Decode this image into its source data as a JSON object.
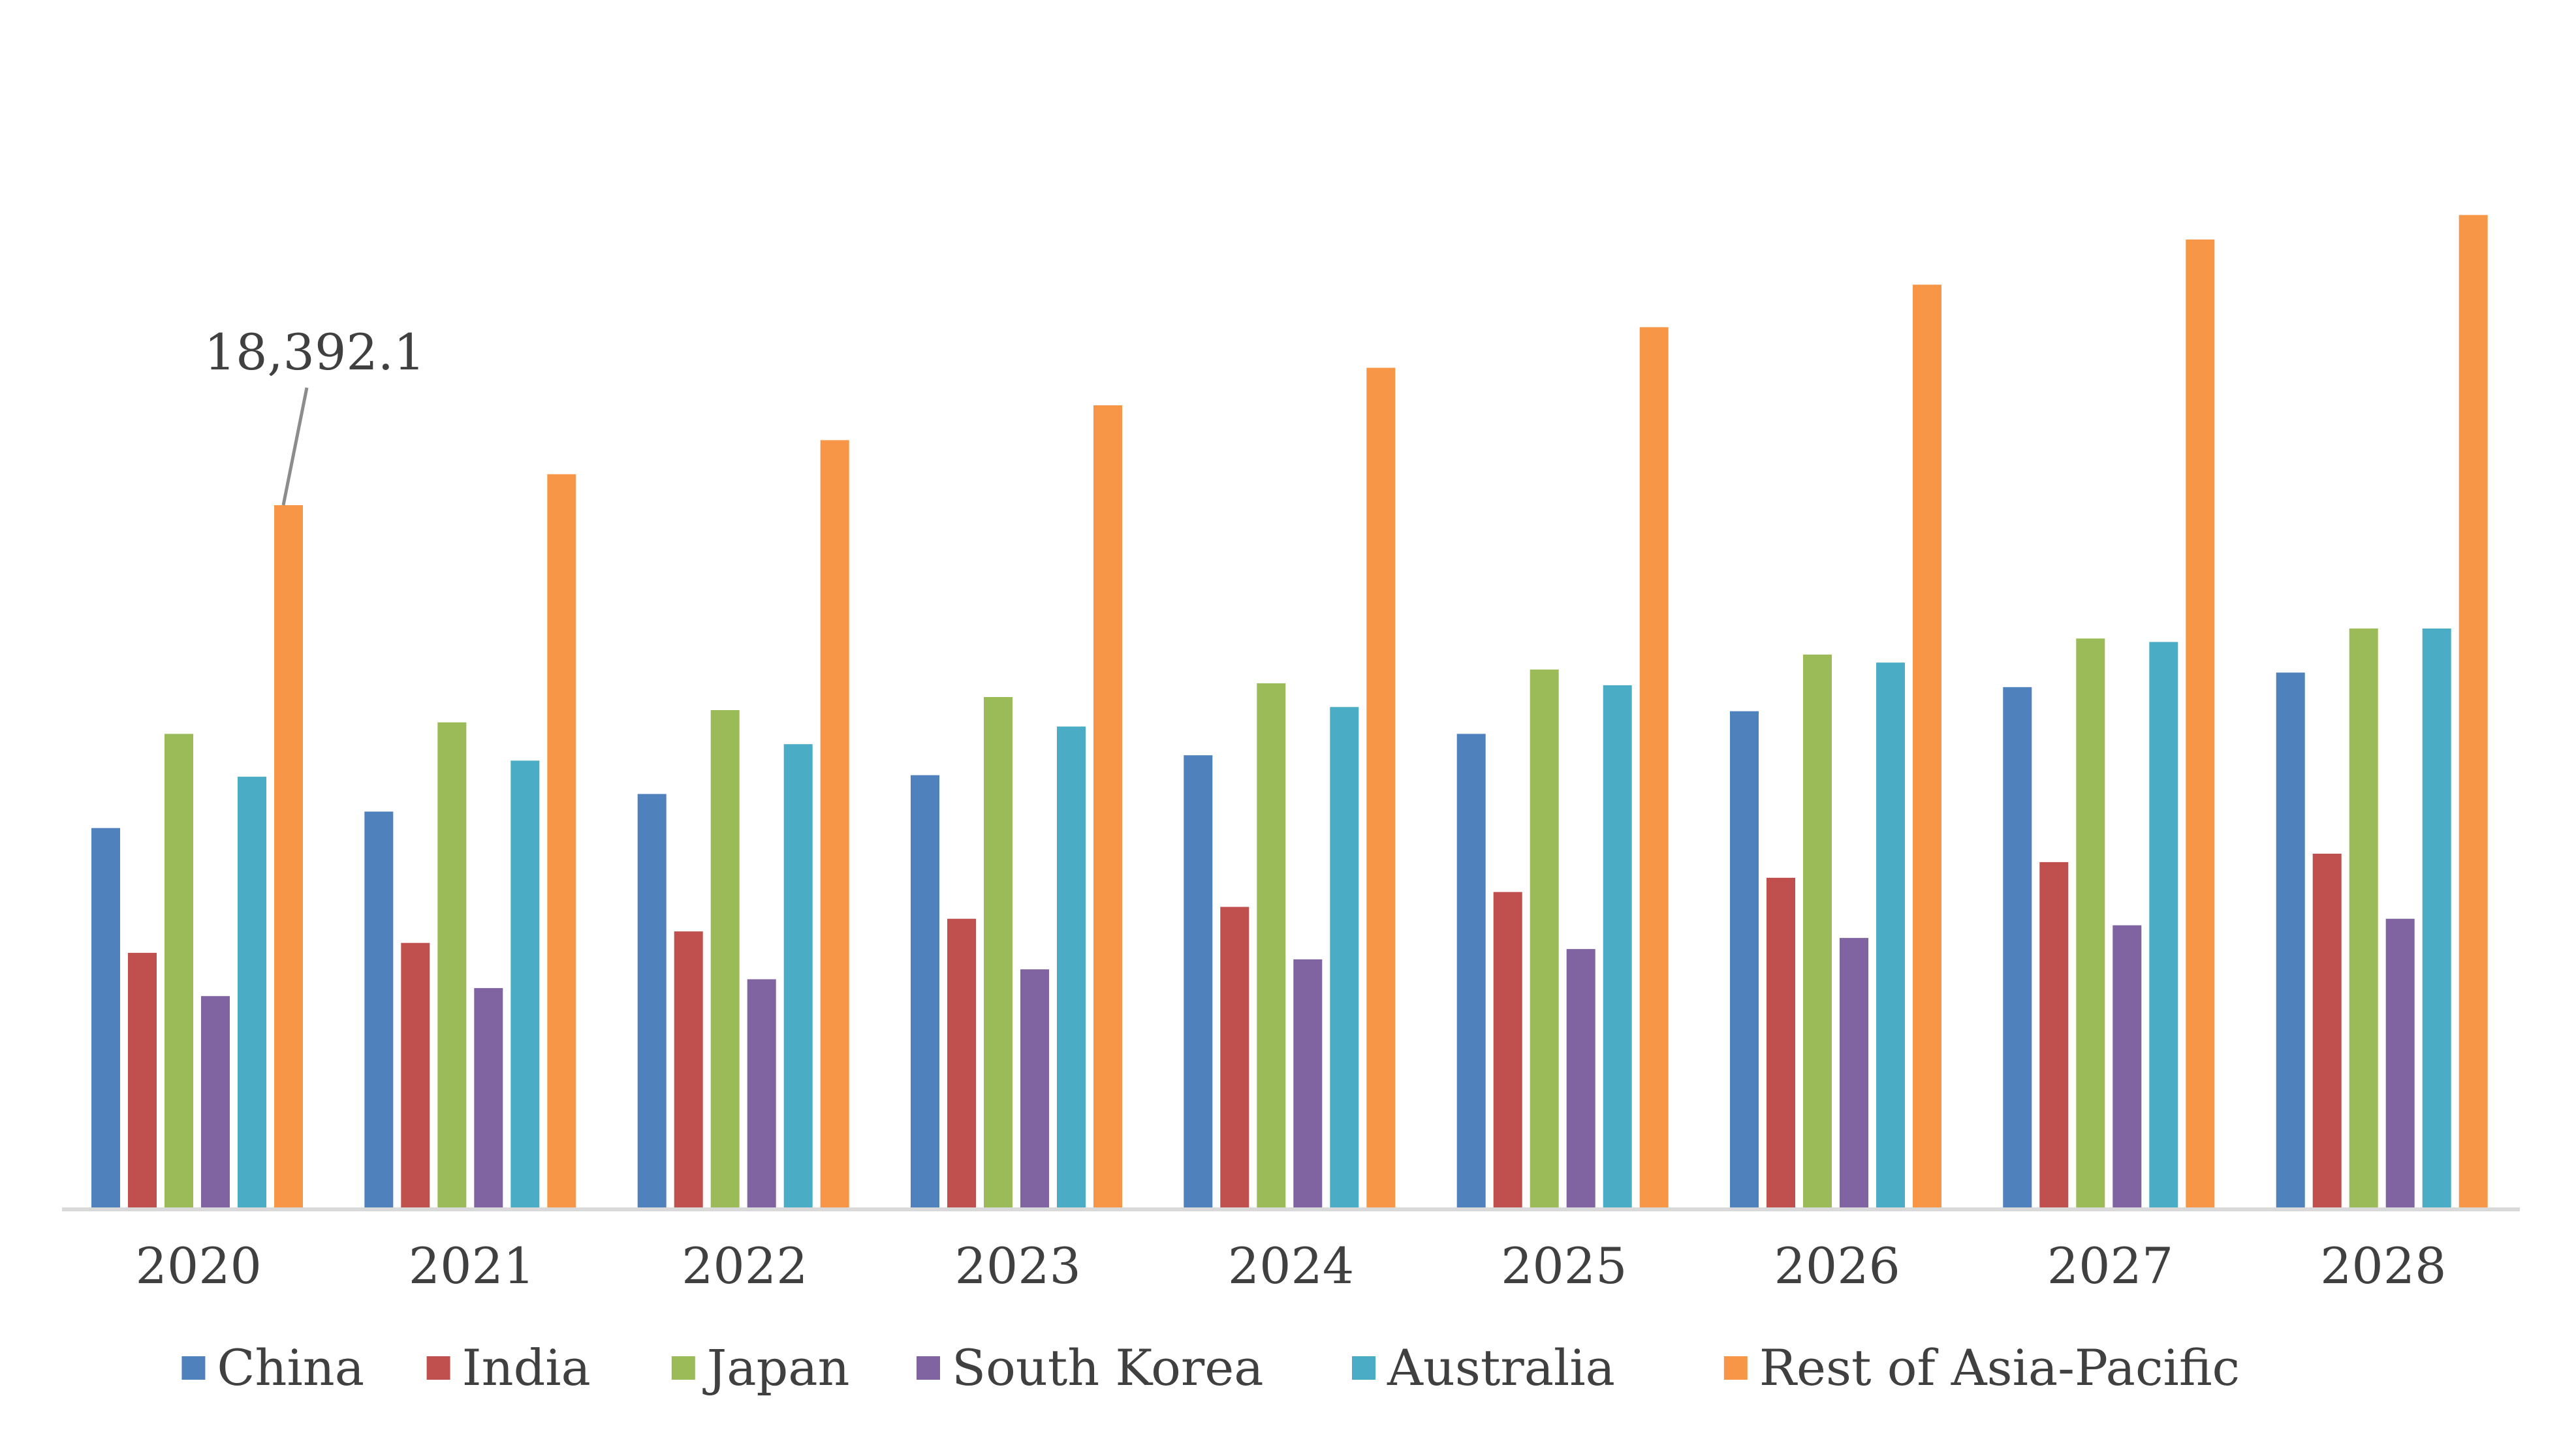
{
  "chart_data": {
    "type": "bar",
    "title": "",
    "xlabel": "",
    "ylabel": "",
    "ylim": [
      0,
      26000
    ],
    "grid": false,
    "legend_position": "bottom",
    "categories": [
      "2020",
      "2021",
      "2022",
      "2023",
      "2024",
      "2025",
      "2026",
      "2027",
      "2028"
    ],
    "series": [
      {
        "name": "China",
        "color": "#4F81BD",
        "values": [
          9960,
          10390,
          10850,
          11340,
          11860,
          12420,
          13010,
          13640,
          14020
        ]
      },
      {
        "name": "India",
        "color": "#C0504D",
        "values": [
          6700,
          6960,
          7260,
          7590,
          7900,
          8290,
          8660,
          9070,
          9290
        ]
      },
      {
        "name": "Japan",
        "color": "#9BBB59",
        "values": [
          12420,
          12720,
          13040,
          13380,
          13740,
          14100,
          14490,
          14910,
          15170
        ]
      },
      {
        "name": "South Korea",
        "color": "#8064A2",
        "values": [
          5570,
          5780,
          6010,
          6270,
          6530,
          6800,
          7090,
          7420,
          7590
        ]
      },
      {
        "name": "Australia",
        "color": "#4BACC6",
        "values": [
          11300,
          11720,
          12150,
          12610,
          13120,
          13690,
          14280,
          14820,
          15170
        ]
      },
      {
        "name": "Rest of Asia-Pacific",
        "color": "#F79646",
        "values": [
          18392.1,
          19200,
          20090,
          21000,
          21980,
          23040,
          24150,
          25330,
          25970
        ]
      }
    ],
    "annotations": [
      {
        "text": "18,392.1",
        "series": "Rest of Asia-Pacific",
        "category": "2020"
      }
    ]
  }
}
